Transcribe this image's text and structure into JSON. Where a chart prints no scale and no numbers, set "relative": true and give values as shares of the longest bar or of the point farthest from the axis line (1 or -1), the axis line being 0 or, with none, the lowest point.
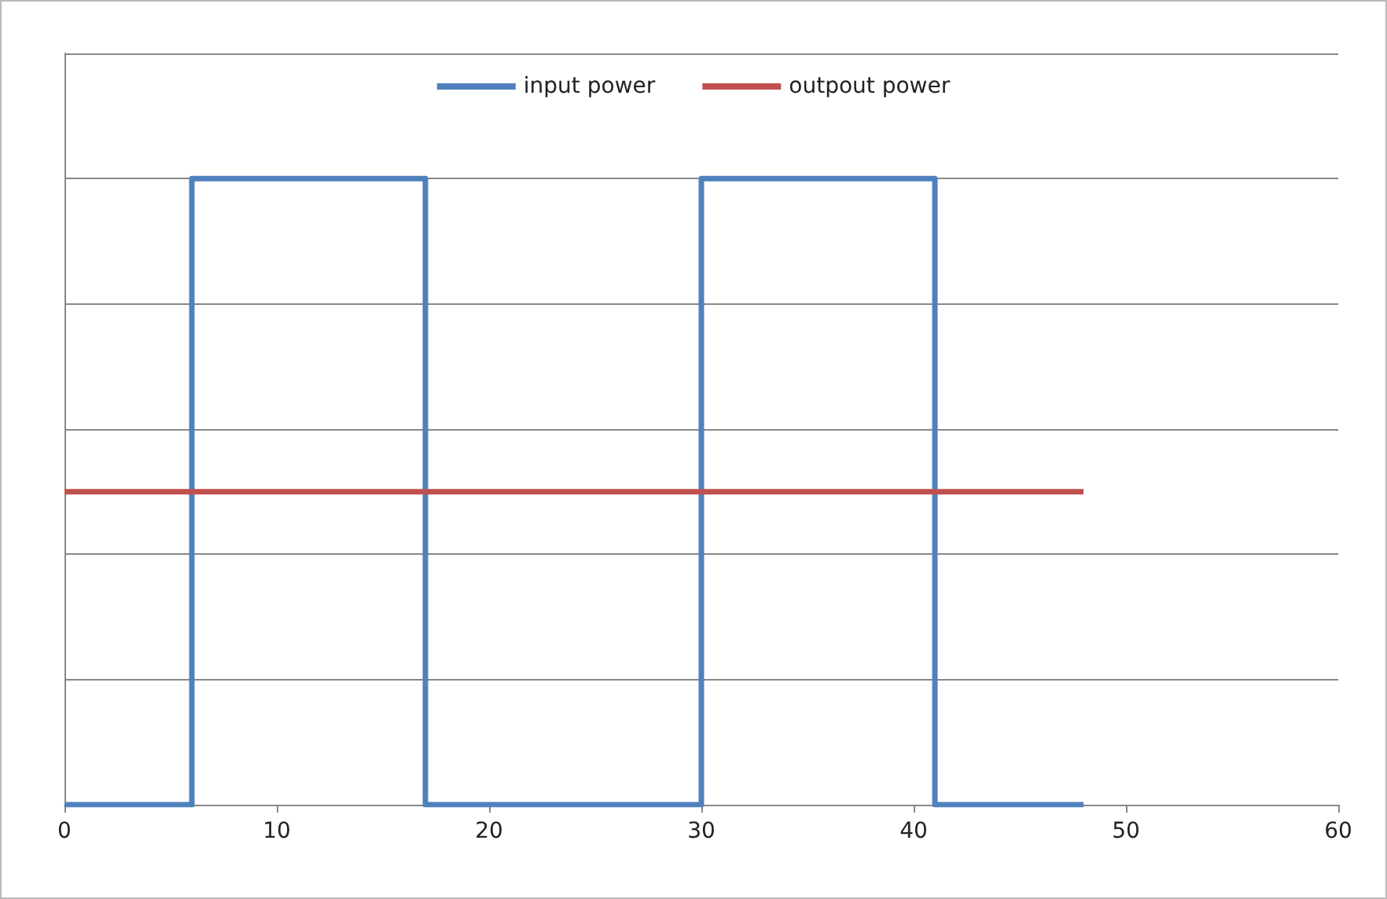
{
  "chart_data": {
    "type": "line",
    "relative": true,
    "xlim": [
      0,
      60
    ],
    "xticks": [
      0,
      10,
      20,
      30,
      40,
      50,
      60
    ],
    "grid": "y",
    "legend": "top",
    "marker": "none",
    "line_style": "solid",
    "series": [
      {
        "name": "input power",
        "type": "step",
        "color": "#4f81bd",
        "x": [
          0,
          6,
          17,
          30,
          41,
          48
        ],
        "values": [
          0,
          1,
          0,
          1,
          0,
          0
        ]
      },
      {
        "name": "outpout power",
        "color": "#c0504d",
        "x": [
          0,
          48
        ],
        "values": [
          0.5,
          0.5
        ]
      }
    ]
  }
}
